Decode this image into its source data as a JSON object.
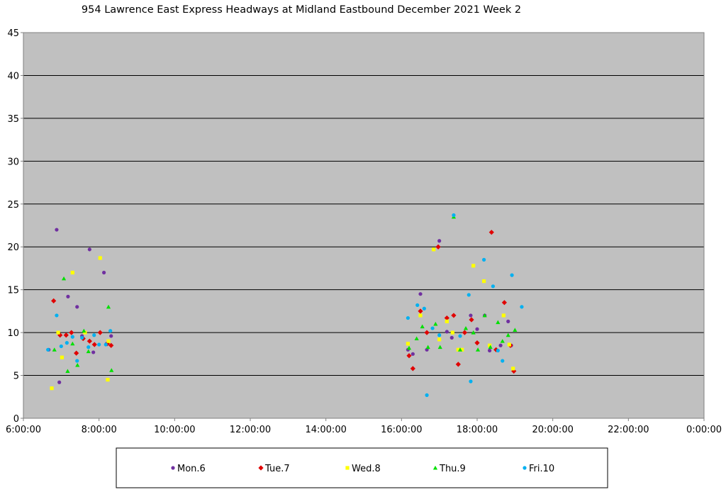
{
  "chart_data": {
    "type": "scatter",
    "title": "954 Lawrence East Express Headways at Midland Eastbound December 2021  Week 2",
    "xlabel": "",
    "ylabel": "",
    "x_unit": "hours",
    "xlim": [
      6,
      24
    ],
    "ylim": [
      0,
      45
    ],
    "x_ticks": [
      6,
      8,
      10,
      12,
      14,
      16,
      18,
      20,
      22,
      24
    ],
    "x_tick_labels": [
      "6:00:00",
      "8:00:00",
      "10:00:00",
      "12:00:00",
      "14:00:00",
      "16:00:00",
      "18:00:00",
      "20:00:00",
      "22:00:00",
      "0:00:00"
    ],
    "y_ticks": [
      0,
      5,
      10,
      15,
      20,
      25,
      30,
      35,
      40,
      45
    ],
    "y_tick_labels": [
      "0",
      "5",
      "10",
      "15",
      "20",
      "25",
      "30",
      "35",
      "40",
      "45"
    ],
    "grid": "horizontal",
    "plot_background": "#c0c0c0",
    "legend_position": "bottom",
    "series": [
      {
        "name": "Mon.6",
        "color": "#7030a0",
        "marker": "circle",
        "points": [
          [
            6.67,
            8.0
          ],
          [
            6.88,
            22.0
          ],
          [
            6.95,
            4.2
          ],
          [
            7.18,
            14.2
          ],
          [
            7.42,
            13.0
          ],
          [
            7.55,
            9.6
          ],
          [
            7.75,
            19.7
          ],
          [
            7.85,
            7.7
          ],
          [
            8.13,
            17.0
          ],
          [
            8.2,
            8.7
          ],
          [
            8.32,
            9.6
          ],
          [
            16.17,
            8.0
          ],
          [
            16.3,
            7.5
          ],
          [
            16.5,
            14.5
          ],
          [
            16.67,
            8.0
          ],
          [
            17.0,
            20.7
          ],
          [
            17.2,
            10.1
          ],
          [
            17.33,
            9.4
          ],
          [
            17.83,
            12.0
          ],
          [
            18.0,
            10.4
          ],
          [
            18.2,
            12.0
          ],
          [
            18.33,
            7.9
          ],
          [
            18.62,
            8.5
          ],
          [
            18.82,
            11.3
          ],
          [
            18.9,
            8.5
          ]
        ]
      },
      {
        "name": "Tue.7",
        "color": "#e00000",
        "marker": "diamond",
        "points": [
          [
            6.8,
            13.7
          ],
          [
            6.97,
            9.7
          ],
          [
            7.13,
            9.7
          ],
          [
            7.27,
            10.0
          ],
          [
            7.4,
            7.6
          ],
          [
            7.58,
            9.3
          ],
          [
            7.75,
            9.0
          ],
          [
            7.88,
            8.6
          ],
          [
            8.03,
            10.0
          ],
          [
            8.22,
            8.7
          ],
          [
            8.32,
            8.5
          ],
          [
            16.2,
            7.3
          ],
          [
            16.3,
            5.8
          ],
          [
            16.5,
            12.5
          ],
          [
            16.67,
            10.0
          ],
          [
            16.97,
            20.0
          ],
          [
            17.2,
            11.7
          ],
          [
            17.38,
            12.0
          ],
          [
            17.5,
            6.3
          ],
          [
            17.67,
            10.0
          ],
          [
            17.85,
            11.5
          ],
          [
            18.0,
            8.8
          ],
          [
            18.38,
            21.7
          ],
          [
            18.5,
            8.0
          ],
          [
            18.72,
            13.5
          ],
          [
            18.88,
            8.5
          ],
          [
            18.97,
            5.5
          ]
        ]
      },
      {
        "name": "Wed.8",
        "color": "#ffff00",
        "marker": "square",
        "points": [
          [
            6.75,
            3.5
          ],
          [
            6.92,
            10.0
          ],
          [
            7.02,
            7.1
          ],
          [
            7.3,
            17.0
          ],
          [
            7.63,
            10.0
          ],
          [
            8.03,
            18.7
          ],
          [
            8.23,
            4.5
          ],
          [
            8.25,
            9.0
          ],
          [
            16.17,
            8.7
          ],
          [
            16.5,
            12.0
          ],
          [
            16.85,
            19.7
          ],
          [
            17.0,
            9.2
          ],
          [
            17.2,
            11.3
          ],
          [
            17.35,
            10.0
          ],
          [
            17.5,
            8.0
          ],
          [
            17.6,
            8.0
          ],
          [
            17.9,
            17.8
          ],
          [
            18.18,
            16.0
          ],
          [
            18.33,
            8.5
          ],
          [
            18.7,
            12.0
          ],
          [
            18.85,
            8.6
          ],
          [
            18.95,
            5.8
          ]
        ]
      },
      {
        "name": "Thu.9",
        "color": "#00e000",
        "marker": "triangle",
        "points": [
          [
            6.82,
            8.0
          ],
          [
            7.07,
            16.3
          ],
          [
            7.17,
            5.5
          ],
          [
            7.3,
            8.7
          ],
          [
            7.43,
            6.2
          ],
          [
            7.6,
            10.2
          ],
          [
            7.72,
            7.8
          ],
          [
            8.25,
            13.0
          ],
          [
            8.33,
            5.6
          ],
          [
            16.2,
            8.2
          ],
          [
            16.4,
            9.3
          ],
          [
            16.55,
            10.7
          ],
          [
            16.7,
            8.3
          ],
          [
            16.9,
            11.0
          ],
          [
            17.02,
            8.3
          ],
          [
            17.38,
            23.5
          ],
          [
            17.55,
            8.0
          ],
          [
            17.7,
            10.5
          ],
          [
            17.9,
            10.0
          ],
          [
            18.02,
            8.0
          ],
          [
            18.2,
            12.0
          ],
          [
            18.35,
            8.3
          ],
          [
            18.55,
            11.2
          ],
          [
            18.67,
            9.0
          ],
          [
            18.82,
            9.7
          ],
          [
            19.0,
            10.3
          ]
        ]
      },
      {
        "name": "Fri.10",
        "color": "#00b0f0",
        "marker": "circle",
        "points": [
          [
            6.65,
            8.0
          ],
          [
            6.88,
            12.0
          ],
          [
            7.0,
            8.4
          ],
          [
            7.15,
            8.8
          ],
          [
            7.3,
            9.5
          ],
          [
            7.42,
            6.7
          ],
          [
            7.55,
            9.4
          ],
          [
            7.72,
            8.3
          ],
          [
            7.87,
            9.7
          ],
          [
            8.0,
            8.6
          ],
          [
            8.18,
            8.6
          ],
          [
            8.3,
            10.2
          ],
          [
            16.17,
            11.7
          ],
          [
            16.42,
            13.2
          ],
          [
            16.6,
            12.8
          ],
          [
            16.67,
            2.7
          ],
          [
            16.82,
            10.5
          ],
          [
            17.0,
            9.7
          ],
          [
            17.38,
            23.7
          ],
          [
            17.55,
            9.6
          ],
          [
            17.78,
            14.4
          ],
          [
            17.83,
            4.3
          ],
          [
            18.18,
            18.5
          ],
          [
            18.42,
            15.4
          ],
          [
            18.55,
            7.9
          ],
          [
            18.67,
            6.7
          ],
          [
            18.92,
            16.7
          ],
          [
            19.18,
            13.0
          ]
        ]
      }
    ]
  }
}
